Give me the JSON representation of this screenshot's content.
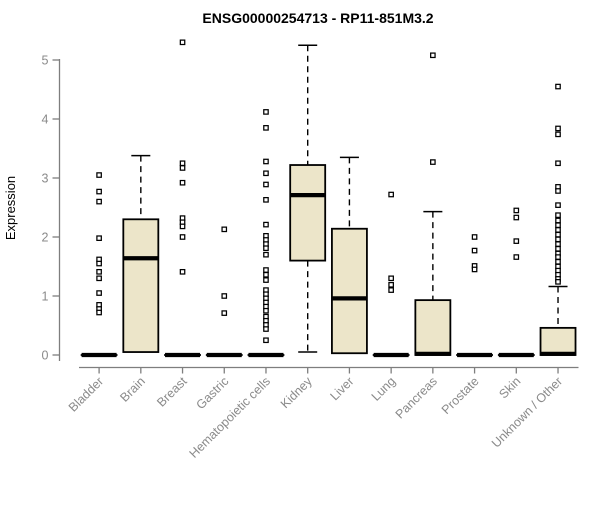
{
  "colors": {
    "background": "#ffffff",
    "title_text": "#000000",
    "axis_line": "#7e7e7e",
    "axis_text": "#8a8a8a",
    "box_fill": "#ece5c9",
    "box_stroke": "#000000",
    "median": "#000000",
    "whisker": "#000000",
    "outlier_stroke": "#000000",
    "outlier_fill": "#ffffff"
  },
  "chart_data": {
    "type": "boxplot",
    "title": "ENSG00000254713 - RP11-851M3.2",
    "xlabel": "",
    "ylabel": "Expression",
    "ylim": [
      0,
      5
    ],
    "yticks": [
      0,
      1,
      2,
      3,
      4,
      5
    ],
    "grid": false,
    "legend": false,
    "categories": [
      "Bladder",
      "Brain",
      "Breast",
      "Gastric",
      "Hematopoietic cells",
      "Kidney",
      "Liver",
      "Lung",
      "Pancreas",
      "Prostate",
      "Skin",
      "Unknown / Other"
    ],
    "series": [
      {
        "name": "Bladder",
        "whisker_low": 0,
        "q1": 0,
        "median": 0,
        "q3": 0,
        "whisker_high": 0,
        "outliers": [
          3.05,
          2.77,
          2.6,
          1.98,
          1.62,
          1.55,
          1.41,
          1.3,
          1.05,
          0.85,
          0.78,
          0.72
        ]
      },
      {
        "name": "Brain",
        "whisker_low": 0.02,
        "q1": 0.05,
        "median": 1.64,
        "q3": 2.3,
        "whisker_high": 3.38,
        "outliers": []
      },
      {
        "name": "Breast",
        "whisker_low": 0,
        "q1": 0,
        "median": 0,
        "q3": 0,
        "whisker_high": 0,
        "outliers": [
          5.3,
          3.25,
          3.17,
          2.92,
          2.32,
          2.25,
          2.18,
          2.0,
          1.41
        ]
      },
      {
        "name": "Gastric",
        "whisker_low": 0,
        "q1": 0,
        "median": 0,
        "q3": 0,
        "whisker_high": 0,
        "outliers": [
          2.13,
          1.0,
          0.71
        ]
      },
      {
        "name": "Hematopoietic cells",
        "whisker_low": 0,
        "q1": 0,
        "median": 0,
        "q3": 0,
        "whisker_high": 0,
        "outliers": [
          4.12,
          3.85,
          3.28,
          3.08,
          2.89,
          2.63,
          2.21,
          2.02,
          1.95,
          1.88,
          1.81,
          1.7,
          1.44,
          1.36,
          1.27,
          1.1,
          1.03,
          0.96,
          0.89,
          0.82,
          0.75,
          0.65,
          0.58,
          0.51,
          0.44,
          0.25
        ]
      },
      {
        "name": "Kidney",
        "whisker_low": 0.05,
        "q1": 1.6,
        "median": 2.71,
        "q3": 3.22,
        "whisker_high": 5.25,
        "outliers": []
      },
      {
        "name": "Liver",
        "whisker_low": 0.02,
        "q1": 0.03,
        "median": 0.96,
        "q3": 2.14,
        "whisker_high": 3.35,
        "outliers": []
      },
      {
        "name": "Lung",
        "whisker_low": 0,
        "q1": 0,
        "median": 0,
        "q3": 0,
        "whisker_high": 0,
        "outliers": [
          2.72,
          1.3,
          1.19,
          1.1
        ]
      },
      {
        "name": "Pancreas",
        "whisker_low": 0,
        "q1": 0,
        "median": 0.02,
        "q3": 0.93,
        "whisker_high": 2.43,
        "outliers": [
          5.08,
          3.27
        ]
      },
      {
        "name": "Prostate",
        "whisker_low": 0,
        "q1": 0,
        "median": 0,
        "q3": 0,
        "whisker_high": 0,
        "outliers": [
          2.0,
          1.77,
          1.51,
          1.45
        ]
      },
      {
        "name": "Skin",
        "whisker_low": 0,
        "q1": 0,
        "median": 0,
        "q3": 0,
        "whisker_high": 0,
        "outliers": [
          2.45,
          2.33,
          1.93,
          1.66
        ]
      },
      {
        "name": "Unknown / Other",
        "whisker_low": 0,
        "q1": 0,
        "median": 0.02,
        "q3": 0.46,
        "whisker_high": 1.16,
        "outliers": [
          4.55,
          3.84,
          3.74,
          3.25,
          2.85,
          2.78,
          2.54,
          2.37,
          2.28,
          2.2,
          2.12,
          2.04,
          1.96,
          1.88,
          1.8,
          1.72,
          1.66,
          1.58,
          1.5,
          1.43,
          1.36,
          1.29,
          1.24
        ]
      }
    ]
  }
}
